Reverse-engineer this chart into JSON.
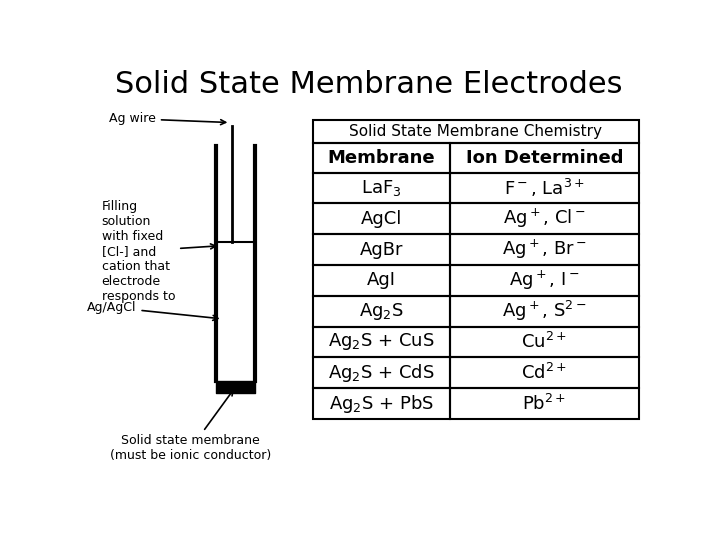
{
  "title": "Solid State Membrane Electrodes",
  "table_header": "Solid State Membrane Chemistry",
  "col_headers": [
    "Membrane",
    "Ion Determined"
  ],
  "rows": [
    [
      "LaF$_3$",
      "F$^-$, La$^{3+}$"
    ],
    [
      "AgCl",
      "Ag$^+$, Cl$^-$"
    ],
    [
      "AgBr",
      "Ag$^+$, Br$^-$"
    ],
    [
      "AgI",
      "Ag$^+$, I$^-$"
    ],
    [
      "Ag$_2$S",
      "Ag$^+$, S$^{2-}$"
    ],
    [
      "Ag$_2$S + CuS",
      "Cu$^{2+}$"
    ],
    [
      "Ag$_2$S + CdS",
      "Cd$^{2+}$"
    ],
    [
      "Ag$_2$S + PbS",
      "Pb$^{2+}$"
    ]
  ],
  "bg_color": "#ffffff",
  "text_color": "#000000",
  "label_ag_wire": "Ag wire",
  "label_filling": "Filling\nsolution\nwith fixed\n[Cl-] and\ncation that\nelectrode\nresponds to",
  "label_agagcl": "Ag/AgCl",
  "label_membrane": "Solid state membrane\n(must be ionic conductor)",
  "title_fontsize": 22,
  "table_fontsize": 11,
  "col_header_fontsize": 13,
  "diagram_fontsize": 9
}
